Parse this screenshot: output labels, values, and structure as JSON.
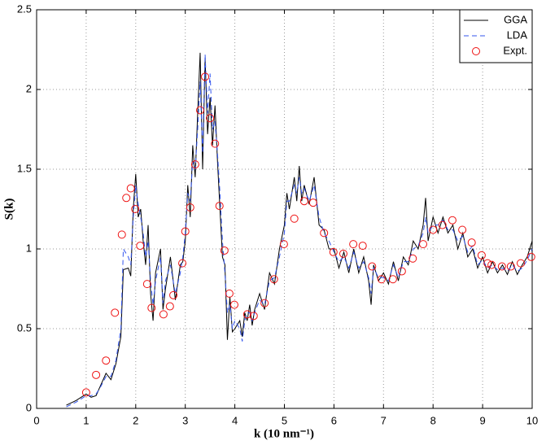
{
  "chart_data": {
    "type": "line",
    "xlabel": "k (10 nm⁻¹)",
    "ylabel": "S(k)",
    "xlim": [
      0,
      10
    ],
    "xticks": [
      0,
      1,
      2,
      3,
      4,
      5,
      6,
      7,
      8,
      9,
      10
    ],
    "ylim": [
      0,
      2.5
    ],
    "yticks": [
      0,
      0.5,
      1,
      1.5,
      2,
      2.5
    ],
    "grid": true,
    "legend": "top-right",
    "series": [
      {
        "name": "GGA",
        "color": "#000000",
        "dashed": false,
        "x": [
          0.6,
          0.8,
          1.0,
          1.1,
          1.2,
          1.3,
          1.4,
          1.5,
          1.6,
          1.7,
          1.75,
          1.85,
          1.9,
          1.95,
          2.0,
          2.05,
          2.1,
          2.15,
          2.2,
          2.25,
          2.3,
          2.35,
          2.4,
          2.5,
          2.55,
          2.6,
          2.7,
          2.8,
          2.9,
          2.95,
          3.0,
          3.05,
          3.1,
          3.15,
          3.2,
          3.25,
          3.3,
          3.35,
          3.4,
          3.45,
          3.5,
          3.55,
          3.6,
          3.65,
          3.7,
          3.75,
          3.8,
          3.85,
          3.9,
          3.95,
          4.0,
          4.1,
          4.15,
          4.2,
          4.25,
          4.3,
          4.35,
          4.4,
          4.5,
          4.6,
          4.7,
          4.8,
          4.9,
          5.0,
          5.05,
          5.1,
          5.2,
          5.25,
          5.3,
          5.35,
          5.4,
          5.5,
          5.6,
          5.7,
          5.8,
          5.9,
          6.0,
          6.1,
          6.2,
          6.3,
          6.4,
          6.5,
          6.6,
          6.7,
          6.75,
          6.8,
          6.9,
          7.0,
          7.1,
          7.2,
          7.3,
          7.4,
          7.5,
          7.6,
          7.7,
          7.8,
          7.85,
          7.9,
          8.0,
          8.1,
          8.2,
          8.3,
          8.4,
          8.5,
          8.6,
          8.7,
          8.8,
          8.9,
          9.0,
          9.1,
          9.2,
          9.3,
          9.4,
          9.5,
          9.6,
          9.7,
          9.8,
          9.9,
          10.0
        ],
        "values": [
          0.02,
          0.05,
          0.09,
          0.07,
          0.08,
          0.15,
          0.22,
          0.18,
          0.28,
          0.45,
          0.87,
          0.88,
          0.83,
          1.25,
          1.47,
          1.2,
          1.25,
          1.05,
          0.9,
          1.15,
          0.72,
          0.55,
          0.85,
          1.0,
          0.62,
          0.75,
          0.95,
          0.68,
          0.9,
          0.92,
          1.05,
          1.4,
          1.2,
          1.65,
          1.45,
          1.85,
          2.23,
          1.5,
          2.2,
          1.72,
          1.95,
          1.65,
          1.9,
          1.55,
          1.25,
          0.95,
          0.9,
          0.43,
          0.7,
          0.48,
          0.5,
          0.55,
          0.45,
          0.6,
          0.55,
          0.65,
          0.52,
          0.62,
          0.72,
          0.62,
          0.85,
          0.78,
          1.0,
          1.15,
          1.35,
          1.25,
          1.45,
          1.3,
          1.52,
          1.3,
          1.4,
          1.28,
          1.45,
          1.15,
          1.12,
          1.0,
          1.0,
          0.88,
          0.98,
          0.85,
          1.0,
          0.85,
          0.95,
          0.8,
          0.65,
          0.9,
          0.8,
          0.85,
          0.78,
          0.92,
          0.8,
          0.95,
          0.9,
          1.05,
          1.0,
          1.15,
          1.32,
          1.05,
          1.2,
          1.1,
          1.2,
          1.1,
          1.15,
          1.0,
          1.1,
          0.95,
          1.0,
          0.88,
          0.95,
          0.85,
          0.92,
          0.85,
          0.9,
          0.84,
          0.92,
          0.84,
          0.9,
          0.95,
          1.05
        ]
      },
      {
        "name": "LDA",
        "color": "#3355ee",
        "dashed": true,
        "x": [
          0.6,
          0.8,
          1.0,
          1.1,
          1.2,
          1.3,
          1.4,
          1.5,
          1.6,
          1.7,
          1.75,
          1.85,
          1.9,
          1.95,
          2.0,
          2.05,
          2.1,
          2.15,
          2.2,
          2.25,
          2.3,
          2.35,
          2.4,
          2.5,
          2.55,
          2.6,
          2.7,
          2.8,
          2.9,
          2.95,
          3.0,
          3.05,
          3.1,
          3.15,
          3.2,
          3.25,
          3.3,
          3.35,
          3.4,
          3.45,
          3.5,
          3.55,
          3.6,
          3.65,
          3.7,
          3.75,
          3.8,
          3.85,
          3.9,
          3.95,
          4.0,
          4.1,
          4.15,
          4.2,
          4.25,
          4.3,
          4.35,
          4.4,
          4.5,
          4.6,
          4.7,
          4.8,
          4.9,
          5.0,
          5.05,
          5.1,
          5.2,
          5.25,
          5.3,
          5.35,
          5.4,
          5.5,
          5.6,
          5.7,
          5.8,
          5.9,
          6.0,
          6.1,
          6.2,
          6.3,
          6.4,
          6.5,
          6.6,
          6.7,
          6.75,
          6.8,
          6.9,
          7.0,
          7.1,
          7.2,
          7.3,
          7.4,
          7.5,
          7.6,
          7.7,
          7.8,
          7.85,
          7.9,
          8.0,
          8.1,
          8.2,
          8.3,
          8.4,
          8.5,
          8.6,
          8.7,
          8.8,
          8.9,
          9.0,
          9.1,
          9.2,
          9.3,
          9.4,
          9.5,
          9.6,
          9.7,
          9.8,
          9.9,
          10.0
        ],
        "values": [
          0.01,
          0.04,
          0.08,
          0.08,
          0.09,
          0.14,
          0.2,
          0.2,
          0.3,
          0.5,
          1.0,
          0.95,
          0.9,
          1.2,
          1.4,
          1.28,
          1.2,
          1.1,
          0.95,
          1.05,
          0.8,
          0.65,
          0.8,
          0.95,
          0.66,
          0.8,
          0.9,
          0.72,
          0.85,
          0.95,
          1.1,
          1.35,
          1.3,
          1.55,
          1.5,
          1.75,
          2.05,
          1.6,
          2.22,
          1.85,
          2.1,
          1.75,
          1.8,
          1.6,
          1.35,
          1.05,
          0.85,
          0.6,
          0.65,
          0.5,
          0.55,
          0.5,
          0.42,
          0.55,
          0.6,
          0.6,
          0.55,
          0.6,
          0.68,
          0.65,
          0.8,
          0.82,
          0.95,
          1.1,
          1.3,
          1.3,
          1.4,
          1.35,
          1.45,
          1.35,
          1.38,
          1.3,
          1.4,
          1.2,
          1.1,
          1.05,
          0.98,
          0.92,
          0.95,
          0.88,
          0.98,
          0.88,
          0.92,
          0.82,
          0.72,
          0.88,
          0.82,
          0.82,
          0.8,
          0.9,
          0.82,
          0.92,
          0.92,
          1.0,
          1.02,
          1.1,
          1.2,
          1.1,
          1.15,
          1.15,
          1.18,
          1.12,
          1.12,
          1.05,
          1.08,
          0.98,
          1.02,
          0.9,
          0.93,
          0.88,
          0.9,
          0.87,
          0.88,
          0.86,
          0.9,
          0.86,
          0.88,
          0.93,
          1.0
        ]
      },
      {
        "name": "Expt.",
        "color": "#ee1111",
        "type": "scatter",
        "x": [
          1.0,
          1.2,
          1.4,
          1.58,
          1.72,
          1.81,
          1.9,
          1.99,
          2.09,
          2.23,
          2.32,
          2.56,
          2.69,
          2.76,
          2.94,
          3.0,
          3.1,
          3.2,
          3.3,
          3.4,
          3.5,
          3.6,
          3.69,
          3.79,
          3.89,
          3.99,
          4.25,
          4.38,
          4.6,
          4.79,
          4.99,
          5.2,
          5.4,
          5.58,
          5.8,
          5.99,
          6.19,
          6.39,
          6.58,
          6.77,
          6.96,
          7.19,
          7.37,
          7.59,
          7.8,
          8.0,
          8.19,
          8.39,
          8.59,
          8.78,
          8.98,
          9.1,
          9.18,
          9.39,
          9.57,
          9.77,
          9.98
        ],
        "values": [
          0.1,
          0.21,
          0.3,
          0.6,
          1.09,
          1.32,
          1.38,
          1.25,
          1.02,
          0.78,
          0.63,
          0.59,
          0.64,
          0.71,
          0.91,
          1.11,
          1.26,
          1.53,
          1.87,
          2.08,
          1.82,
          1.66,
          1.27,
          0.99,
          0.72,
          0.65,
          0.59,
          0.58,
          0.66,
          0.81,
          1.03,
          1.19,
          1.3,
          1.29,
          1.1,
          0.98,
          0.97,
          1.03,
          1.02,
          0.89,
          0.81,
          0.81,
          0.86,
          0.94,
          1.03,
          1.12,
          1.15,
          1.18,
          1.12,
          1.04,
          0.96,
          0.91,
          0.9,
          0.89,
          0.89,
          0.91,
          0.95
        ]
      }
    ]
  }
}
